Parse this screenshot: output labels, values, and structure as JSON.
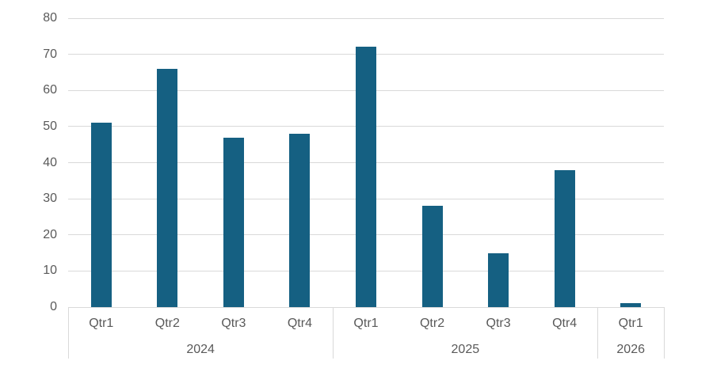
{
  "chart_data": {
    "type": "bar",
    "title": "",
    "categories": [
      "Qtr1",
      "Qtr2",
      "Qtr3",
      "Qtr4",
      "Qtr1",
      "Qtr2",
      "Qtr3",
      "Qtr4",
      "Qtr1"
    ],
    "values": [
      51,
      66,
      47,
      48,
      72,
      28,
      15,
      38,
      1
    ],
    "year_groups": [
      {
        "label": "2024",
        "span": 4
      },
      {
        "label": "2025",
        "span": 4
      },
      {
        "label": "2026",
        "span": 1
      }
    ],
    "series_name": "",
    "xlabel": "",
    "ylabel": "",
    "y_ticks": [
      0,
      10,
      20,
      30,
      40,
      50,
      60,
      70,
      80
    ],
    "ylim": [
      0,
      80
    ],
    "grid": true,
    "legend": false,
    "legend_position": "none",
    "colors": {
      "bar": "#156082",
      "gridline": "#d9d9d9",
      "axis_line": "#d9d9d9",
      "label_text": "#595959",
      "background": "#ffffff"
    }
  }
}
